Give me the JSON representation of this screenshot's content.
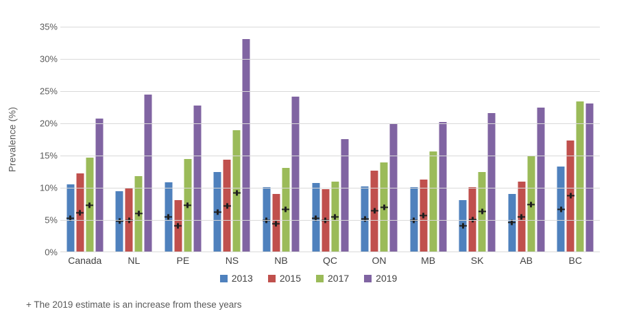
{
  "chart_data": {
    "type": "bar",
    "title": "",
    "xlabel": "",
    "ylabel": "Prevalence (%)",
    "ylim": [
      0,
      35
    ],
    "ytick_step": 5,
    "yticks": [
      "0%",
      "5%",
      "10%",
      "15%",
      "20%",
      "25%",
      "30%",
      "35%"
    ],
    "grid": true,
    "legend_position": "bottom",
    "categories": [
      "Canada",
      "NL",
      "PE",
      "NS",
      "NB",
      "QC",
      "ON",
      "MB",
      "SK",
      "AB",
      "BC"
    ],
    "series": [
      {
        "name": "2013",
        "color": "#4F81BD",
        "values": [
          10.5,
          9.5,
          10.9,
          12.4,
          10.1,
          10.7,
          10.2,
          10.1,
          8.1,
          9.0,
          13.3
        ],
        "plus_markers": [
          5.3,
          4.8,
          5.5,
          6.2,
          5.0,
          5.3,
          5.2,
          5.0,
          4.1,
          4.6,
          6.6
        ]
      },
      {
        "name": "2015",
        "color": "#C0504D",
        "values": [
          12.2,
          9.9,
          8.1,
          14.4,
          9.0,
          9.8,
          12.7,
          11.3,
          10.1,
          11.0,
          17.3
        ],
        "plus_markers": [
          6.1,
          5.0,
          4.1,
          7.2,
          4.4,
          4.9,
          6.4,
          5.7,
          5.1,
          5.5,
          8.8
        ]
      },
      {
        "name": "2017",
        "color": "#9BBB59",
        "values": [
          14.7,
          11.8,
          14.5,
          18.9,
          13.1,
          11.0,
          13.9,
          15.6,
          12.4,
          15.0,
          23.4
        ],
        "plus_markers": [
          7.3,
          6.0,
          7.3,
          9.2,
          6.6,
          5.5,
          7.0,
          null,
          6.3,
          7.4,
          null
        ]
      },
      {
        "name": "2019",
        "color": "#8064A2",
        "values": [
          20.7,
          24.5,
          22.8,
          33.1,
          24.2,
          17.6,
          19.9,
          20.2,
          21.6,
          22.5,
          23.1
        ],
        "plus_markers": [
          null,
          null,
          null,
          null,
          null,
          null,
          null,
          null,
          null,
          null,
          null
        ]
      }
    ]
  },
  "footnote": "+ The 2019 estimate is an increase from these years",
  "colors": {
    "gridline": "#D9D9D9",
    "axis_text": "#595959",
    "marker": "#1F1F1F",
    "background": "#FFFFFF"
  }
}
